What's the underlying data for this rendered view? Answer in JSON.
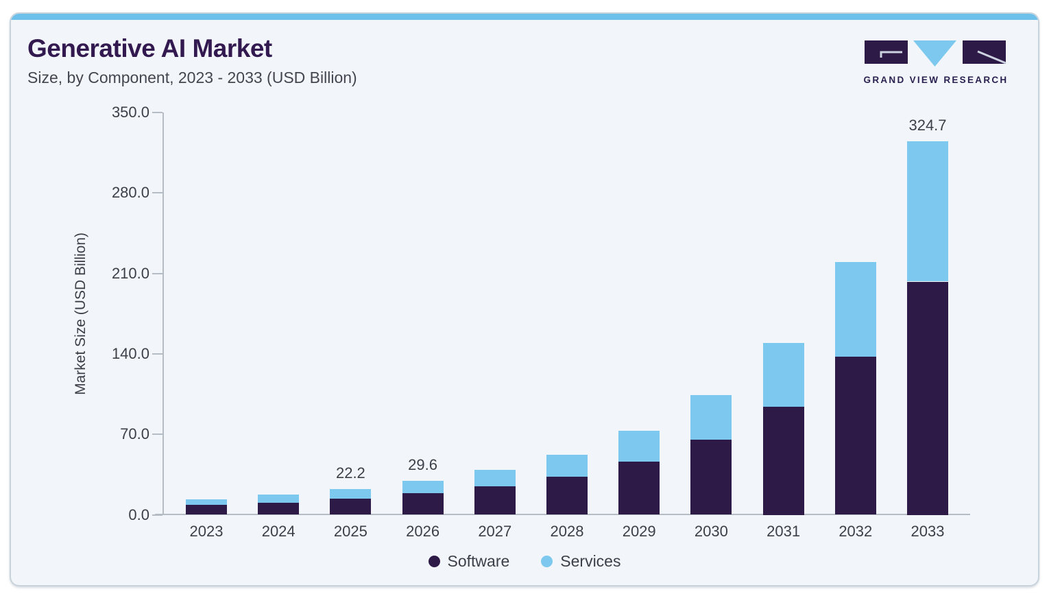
{
  "header": {
    "title": "Generative AI Market",
    "subtitle": "Size, by Component, 2023 - 2033 (USD Billion)"
  },
  "logo": {
    "wordmark": "GRAND VIEW RESEARCH",
    "mark_purple": "#2e1a47",
    "mark_blue": "#7cc8ee",
    "mark_slash": "#ccd2df"
  },
  "chart_data": {
    "type": "bar",
    "stacked": true,
    "title": "Generative AI Market Size, by Component, 2023 - 2033 (USD Billion)",
    "ylabel": "Market Size (USD Billion)",
    "ylim": [
      0,
      350
    ],
    "ytick_labels": [
      "350.0",
      "280.0",
      "210.0",
      "140.0",
      "70.0",
      "0.0"
    ],
    "grid": false,
    "categories": [
      "2023",
      "2024",
      "2025",
      "2026",
      "2027",
      "2028",
      "2029",
      "2030",
      "2031",
      "2032",
      "2033"
    ],
    "series": [
      {
        "name": "Software",
        "color": "#2e1a47",
        "values": [
          8.8,
          10.6,
          14.1,
          19.0,
          24.6,
          33.2,
          46.3,
          65.1,
          94.3,
          137.3,
          202.9
        ]
      },
      {
        "name": "Services",
        "color": "#7cc8ee",
        "values": [
          4.9,
          7.2,
          8.1,
          10.6,
          14.3,
          19.3,
          27.1,
          39.3,
          55.2,
          82.4,
          121.8
        ]
      }
    ],
    "totals": [
      13.7,
      17.8,
      22.2,
      29.6,
      38.9,
      52.5,
      73.4,
      104.4,
      149.5,
      219.7,
      324.7
    ],
    "bar_total_labels": {
      "2025": "22.2",
      "2026": "29.6",
      "2033": "324.7"
    },
    "legend": {
      "position": "bottom",
      "items": [
        "Software",
        "Services"
      ]
    }
  },
  "colors": {
    "card_background": "#f2f6fa",
    "card_border": "#c9d3dc",
    "top_accent": "#6cc0ea",
    "axis": "#b6bcc4",
    "text": "#3e3e48",
    "title_text": "#32194f"
  }
}
